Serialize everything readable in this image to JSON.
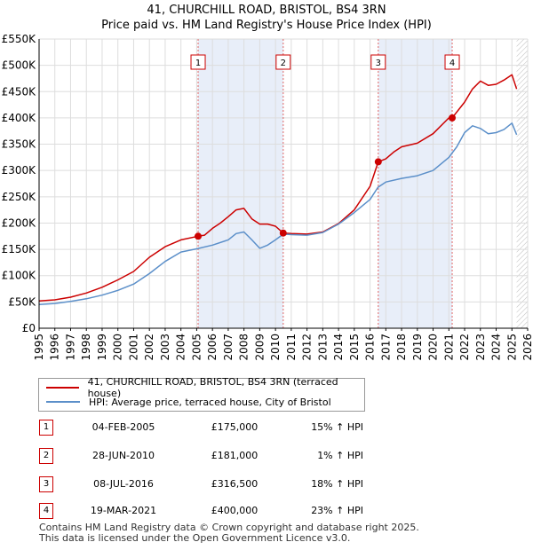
{
  "title_line1": "41, CHURCHILL ROAD, BRISTOL, BS4 3RN",
  "title_line2": "Price paid vs. HM Land Registry's House Price Index (HPI)",
  "colors": {
    "property": "#cc0000",
    "hpi": "#5b8fc9",
    "shade": "#e8eef9",
    "grid": "#dddddd",
    "vline": "#e06666",
    "hatch": "#bbbbbb"
  },
  "chart_data": {
    "type": "line",
    "title": "41, CHURCHILL ROAD, BRISTOL, BS4 3RN — Price paid vs. HM Land Registry's House Price Index (HPI)",
    "xlim": [
      1995,
      2026
    ],
    "ylim": [
      0,
      550000
    ],
    "x_ticks": [
      1995,
      1996,
      1997,
      1998,
      1999,
      2000,
      2001,
      2002,
      2003,
      2004,
      2005,
      2006,
      2007,
      2008,
      2009,
      2010,
      2011,
      2012,
      2013,
      2014,
      2015,
      2016,
      2017,
      2018,
      2019,
      2020,
      2021,
      2022,
      2023,
      2024,
      2025,
      2026
    ],
    "x_tick_labels": [
      "1995",
      "1996",
      "1997",
      "1998",
      "1999",
      "2000",
      "2001",
      "2002",
      "2003",
      "2004",
      "2005",
      "2006",
      "2007",
      "2008",
      "2009",
      "2010",
      "2011",
      "2012",
      "2013",
      "2014",
      "2015",
      "2016",
      "2017",
      "2018",
      "2019",
      "2020",
      "2021",
      "2022",
      "2023",
      "2024",
      "2025",
      "2026"
    ],
    "y_ticks": [
      0,
      50000,
      100000,
      150000,
      200000,
      250000,
      300000,
      350000,
      400000,
      450000,
      500000,
      550000
    ],
    "y_tick_labels": [
      "£0",
      "£50K",
      "£100K",
      "£150K",
      "£200K",
      "£250K",
      "£300K",
      "£350K",
      "£400K",
      "£450K",
      "£500K",
      "£550K"
    ],
    "shaded_ranges": [
      [
        2005.09,
        2010.49
      ],
      [
        2016.52,
        2021.21
      ]
    ],
    "future_hatch_from": 2025.3,
    "series": [
      {
        "name": "41, CHURCHILL ROAD, BRISTOL, BS4 3RN (terraced house)",
        "x": [
          1995,
          1996,
          1997,
          1998,
          1999,
          2000,
          2001,
          2002,
          2003,
          2004,
          2005.09,
          2005.5,
          2006,
          2006.5,
          2007,
          2007.5,
          2008,
          2008.5,
          2009,
          2009.5,
          2010,
          2010.49,
          2011,
          2012,
          2013,
          2014,
          2015,
          2016,
          2016.52,
          2017,
          2017.5,
          2018,
          2019,
          2020,
          2021,
          2021.21,
          2022,
          2022.5,
          2023,
          2023.5,
          2024,
          2024.5,
          2025,
          2025.3
        ],
        "values": [
          52000,
          54000,
          59000,
          67000,
          78000,
          92000,
          108000,
          135000,
          155000,
          168000,
          175000,
          177000,
          190000,
          200000,
          212000,
          225000,
          228000,
          208000,
          198000,
          198000,
          194000,
          181000,
          180000,
          179000,
          183000,
          199000,
          225000,
          270000,
          316500,
          322000,
          335000,
          345000,
          352000,
          370000,
          400000,
          400000,
          430000,
          455000,
          470000,
          462000,
          464000,
          472000,
          482000,
          455000
        ]
      },
      {
        "name": "HPI: Average price, terraced house, City of Bristol",
        "x": [
          1995,
          1996,
          1997,
          1998,
          1999,
          2000,
          2001,
          2002,
          2003,
          2004,
          2005,
          2006,
          2007,
          2007.5,
          2008,
          2008.5,
          2009,
          2009.5,
          2010,
          2010.5,
          2011,
          2012,
          2013,
          2014,
          2015,
          2016,
          2016.5,
          2017,
          2018,
          2019,
          2020,
          2021,
          2021.5,
          2022,
          2022.5,
          2023,
          2023.5,
          2024,
          2024.5,
          2025,
          2025.3
        ],
        "values": [
          45000,
          47000,
          51000,
          56000,
          63000,
          72000,
          84000,
          104000,
          127000,
          145000,
          151000,
          158000,
          168000,
          180000,
          183000,
          168000,
          152000,
          158000,
          168000,
          179000,
          178000,
          177000,
          182000,
          198000,
          220000,
          245000,
          268000,
          278000,
          285000,
          290000,
          300000,
          325000,
          345000,
          372000,
          385000,
          380000,
          370000,
          372000,
          378000,
          390000,
          368000
        ]
      }
    ],
    "transactions": [
      {
        "num": "1",
        "date": "04-FEB-2005",
        "x": 2005.09,
        "price": 175000,
        "price_label": "£175,000",
        "hpi_label": "15% ↑ HPI"
      },
      {
        "num": "2",
        "date": "28-JUN-2010",
        "x": 2010.49,
        "price": 181000,
        "price_label": "£181,000",
        "hpi_label": "1% ↑ HPI"
      },
      {
        "num": "3",
        "date": "08-JUL-2016",
        "x": 2016.52,
        "price": 316500,
        "price_label": "£316,500",
        "hpi_label": "18% ↑ HPI"
      },
      {
        "num": "4",
        "date": "19-MAR-2021",
        "x": 2021.21,
        "price": 400000,
        "price_label": "£400,000",
        "hpi_label": "23% ↑ HPI"
      }
    ]
  },
  "legend": {
    "property_label": "41, CHURCHILL ROAD, BRISTOL, BS4 3RN (terraced house)",
    "hpi_label": "HPI: Average price, terraced house, City of Bristol"
  },
  "footer_line1": "Contains HM Land Registry data © Crown copyright and database right 2025.",
  "footer_line2": "This data is licensed under the Open Government Licence v3.0."
}
